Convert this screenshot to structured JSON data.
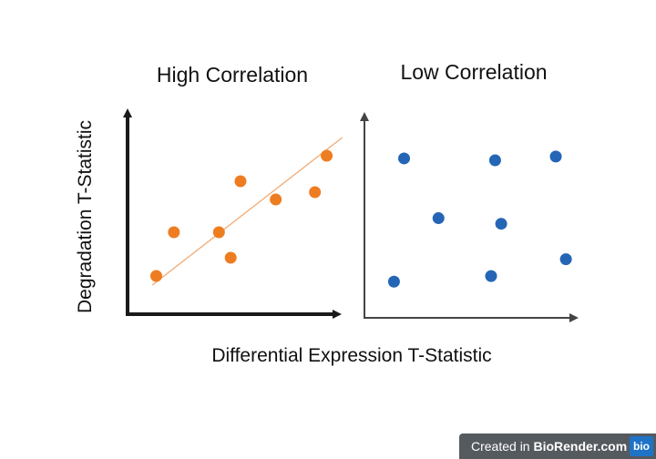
{
  "chart_data": [
    {
      "type": "scatter",
      "title": "High Correlation",
      "xlabel": "Differential Expression T-Statistic",
      "ylabel": "Degradation T-Statistic",
      "xlim": [
        0,
        10
      ],
      "ylim": [
        0,
        10
      ],
      "points": [
        {
          "x": 1.0,
          "y": 1.6
        },
        {
          "x": 1.9,
          "y": 4.0
        },
        {
          "x": 4.2,
          "y": 4.0
        },
        {
          "x": 4.8,
          "y": 2.6
        },
        {
          "x": 5.3,
          "y": 6.8
        },
        {
          "x": 7.1,
          "y": 5.8
        },
        {
          "x": 9.1,
          "y": 6.2
        },
        {
          "x": 9.7,
          "y": 8.2
        }
      ],
      "trendline": {
        "from": [
          0.8,
          1.1
        ],
        "to": [
          10.5,
          9.2
        ]
      },
      "point_color": "#ee7d22",
      "line_color": "#f2aa73"
    },
    {
      "type": "scatter",
      "title": "Low Correlation",
      "xlim": [
        0,
        10
      ],
      "ylim": [
        0,
        10
      ],
      "points": [
        {
          "x": 1.6,
          "y": 8.1
        },
        {
          "x": 6.1,
          "y": 8.0
        },
        {
          "x": 9.1,
          "y": 8.2
        },
        {
          "x": 3.3,
          "y": 4.9
        },
        {
          "x": 6.4,
          "y": 4.6
        },
        {
          "x": 1.1,
          "y": 1.5
        },
        {
          "x": 5.9,
          "y": 1.8
        },
        {
          "x": 9.6,
          "y": 2.7
        }
      ],
      "point_color": "#2466b5"
    }
  ],
  "footer": {
    "badge_prefix": "Created in ",
    "badge_brand": "BioRender.com",
    "logo_text": "bio"
  },
  "colors": {
    "axis_dark": "#1a1a1a",
    "axis_light": "#444444",
    "badge_bg": "#555a5f",
    "logo_bg": "#1f73c6"
  }
}
